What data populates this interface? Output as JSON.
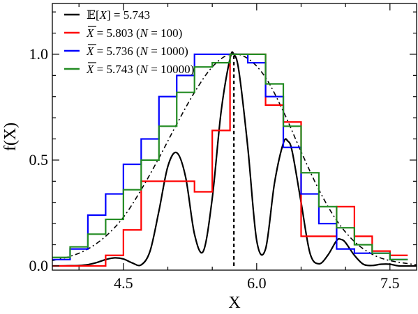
{
  "chart_data": {
    "type": "line",
    "xlabel": "X",
    "ylabel": "f(X)",
    "xlim": [
      3.7,
      7.8
    ],
    "ylim": [
      -0.02,
      1.24
    ],
    "xticks": [
      4.5,
      6.0,
      7.5
    ],
    "xtick_labels": [
      "4.5",
      "6.0",
      "7.5"
    ],
    "yticks": [
      0.0,
      0.5,
      1.0
    ],
    "ytick_labels": [
      "0.0",
      "0.5",
      "1.0"
    ],
    "grid": false,
    "legend_position": "top-left",
    "expected_value": 5.743,
    "series": [
      {
        "name": "𝔼[X] = 5.743",
        "legend_parts": [
          "𝔼[",
          "X",
          "] = 5.743"
        ],
        "style": "oscillating density (solid)",
        "color": "#000000",
        "points": [
          [
            3.7,
            0.0
          ],
          [
            3.8,
            0.0
          ],
          [
            3.9,
            0.001
          ],
          [
            4.0,
            0.002
          ],
          [
            4.1,
            0.006
          ],
          [
            4.2,
            0.016
          ],
          [
            4.3,
            0.03
          ],
          [
            4.4,
            0.038
          ],
          [
            4.5,
            0.033
          ],
          [
            4.6,
            0.014
          ],
          [
            4.7,
            0.005
          ],
          [
            4.8,
            0.07
          ],
          [
            4.9,
            0.26
          ],
          [
            5.0,
            0.47
          ],
          [
            5.1,
            0.535
          ],
          [
            5.2,
            0.42
          ],
          [
            5.3,
            0.15
          ],
          [
            5.4,
            0.07
          ],
          [
            5.5,
            0.32
          ],
          [
            5.6,
            0.73
          ],
          [
            5.7,
            0.98
          ],
          [
            5.743,
            1.0
          ],
          [
            5.8,
            0.92
          ],
          [
            5.9,
            0.56
          ],
          [
            6.0,
            0.12
          ],
          [
            6.1,
            0.08
          ],
          [
            6.2,
            0.39
          ],
          [
            6.3,
            0.58
          ],
          [
            6.35,
            0.59
          ],
          [
            6.4,
            0.54
          ],
          [
            6.5,
            0.3
          ],
          [
            6.6,
            0.06
          ],
          [
            6.7,
            0.01
          ],
          [
            6.8,
            0.05
          ],
          [
            6.9,
            0.12
          ],
          [
            6.95,
            0.125
          ],
          [
            7.0,
            0.11
          ],
          [
            7.1,
            0.05
          ],
          [
            7.2,
            0.008
          ],
          [
            7.3,
            0.002
          ],
          [
            7.4,
            0.008
          ],
          [
            7.5,
            0.008
          ],
          [
            7.6,
            0.0
          ],
          [
            7.8,
            0.0
          ]
        ]
      },
      {
        "name": "",
        "style": "smooth envelope (dash-dot)",
        "color": "#000000",
        "points": [
          [
            3.7,
            0.025
          ],
          [
            3.9,
            0.045
          ],
          [
            4.1,
            0.08
          ],
          [
            4.3,
            0.14
          ],
          [
            4.5,
            0.23
          ],
          [
            4.7,
            0.36
          ],
          [
            4.9,
            0.51
          ],
          [
            5.1,
            0.67
          ],
          [
            5.3,
            0.82
          ],
          [
            5.5,
            0.94
          ],
          [
            5.7,
            1.0
          ],
          [
            5.9,
            0.98
          ],
          [
            6.1,
            0.89
          ],
          [
            6.3,
            0.73
          ],
          [
            6.5,
            0.54
          ],
          [
            6.7,
            0.36
          ],
          [
            6.9,
            0.215
          ],
          [
            7.1,
            0.115
          ],
          [
            7.3,
            0.055
          ],
          [
            7.5,
            0.025
          ],
          [
            7.8,
            0.005
          ]
        ]
      },
      {
        "name": "X̄ = 5.803 (N = 100)",
        "legend_parts": [
          "X",
          " = 5.803 (",
          "N",
          " = 100)"
        ],
        "style": "histogram step",
        "color": "#ff0000",
        "edges": [
          3.7,
          3.9,
          4.1,
          4.3,
          4.5,
          4.7,
          4.9,
          5.1,
          5.3,
          5.5,
          5.7,
          5.9,
          6.1,
          6.3,
          6.5,
          6.7,
          6.9,
          7.1,
          7.3,
          7.5,
          7.7
        ],
        "values": [
          0.0,
          0.0,
          0.0,
          0.05,
          0.17,
          0.4,
          0.4,
          0.4,
          0.35,
          0.64,
          1.0,
          1.0,
          0.76,
          0.68,
          0.14,
          0.14,
          0.28,
          0.14,
          0.07,
          0.05
        ]
      },
      {
        "name": "X̄ = 5.736 (N = 1000)",
        "legend_parts": [
          "X",
          " = 5.736 (",
          "N",
          " = 1000)"
        ],
        "style": "histogram step",
        "color": "#0000ff",
        "edges": [
          3.7,
          3.9,
          4.1,
          4.3,
          4.5,
          4.7,
          4.9,
          5.1,
          5.3,
          5.5,
          5.7,
          5.9,
          6.1,
          6.3,
          6.5,
          6.7,
          6.9,
          7.1,
          7.3,
          7.5,
          7.7
        ],
        "values": [
          0.03,
          0.08,
          0.24,
          0.34,
          0.48,
          0.6,
          0.8,
          0.9,
          1.0,
          1.0,
          1.0,
          0.96,
          0.8,
          0.56,
          0.34,
          0.2,
          0.08,
          0.06,
          0.06,
          0.03
        ]
      },
      {
        "name": "X̄ = 5.743 (N = 10000)",
        "legend_parts": [
          "X",
          " = 5.743 (",
          "N",
          " = 10000)"
        ],
        "style": "histogram step",
        "color": "#228b22",
        "edges": [
          3.7,
          3.9,
          4.1,
          4.3,
          4.5,
          4.7,
          4.9,
          5.1,
          5.3,
          5.5,
          5.7,
          5.9,
          6.1,
          6.3,
          6.5,
          6.7,
          6.9,
          7.1,
          7.3,
          7.5,
          7.7
        ],
        "values": [
          0.04,
          0.09,
          0.15,
          0.22,
          0.36,
          0.5,
          0.66,
          0.82,
          0.94,
          0.96,
          1.0,
          1.0,
          0.86,
          0.66,
          0.44,
          0.28,
          0.18,
          0.1,
          0.06,
          0.03
        ]
      }
    ],
    "vline": {
      "x": 5.743,
      "style": "dashed",
      "color": "#000000"
    }
  }
}
